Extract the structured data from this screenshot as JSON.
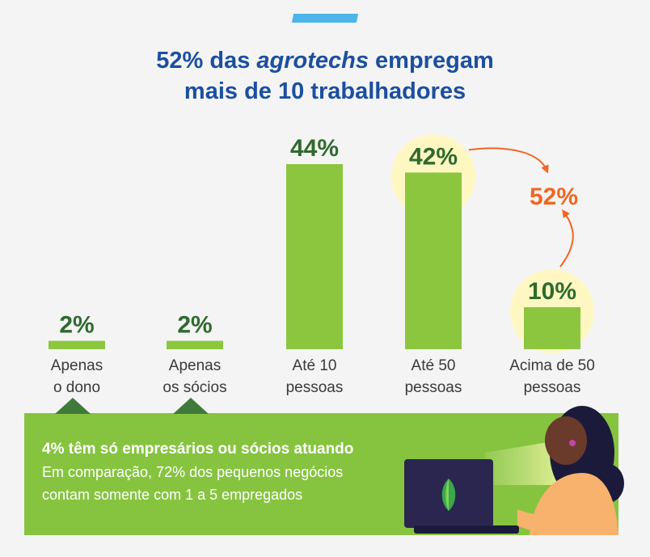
{
  "title": {
    "prefix": "52% das ",
    "emphasis": "agrotechs",
    "suffix": " empregam",
    "line2": "mais de 10 trabalhadores"
  },
  "colors": {
    "bar": "#8cc63f",
    "value_label": "#2f6a2e",
    "title": "#1b4fa0",
    "accent": "#4cb6e8",
    "highlight_circle": "#fff7c2",
    "arrow": "#f26522",
    "panel": "#86c440"
  },
  "chart_data": {
    "type": "bar",
    "categories": [
      "Apenas o dono",
      "Apenas os sócios",
      "Até 10 pessoas",
      "Até 50 pessoas",
      "Acima de 50 pessoas"
    ],
    "category_lines": [
      [
        "Apenas",
        "o dono"
      ],
      [
        "Apenas",
        "os sócios"
      ],
      [
        "Até 10",
        "pessoas"
      ],
      [
        "Até 50",
        "pessoas"
      ],
      [
        "Acima de 50",
        "pessoas"
      ]
    ],
    "values": [
      2,
      2,
      44,
      42,
      10
    ],
    "value_labels": [
      "2%",
      "2%",
      "44%",
      "42%",
      "10%"
    ],
    "ylim": [
      0,
      44
    ],
    "highlighted": [
      3,
      4
    ],
    "annotation": {
      "text": "52%",
      "from": 3,
      "to": 4
    },
    "grid": false,
    "legend": "none"
  },
  "panel": {
    "headline": "4% têm só empresários ou sócios atuando",
    "line1": "Em comparação, 72% dos pequenos negócios",
    "line2": "contam somente com 1 a 5 empregados"
  },
  "illustration": {
    "laptop_logo_icon": "leaf-icon",
    "person": "woman-with-laptop"
  }
}
